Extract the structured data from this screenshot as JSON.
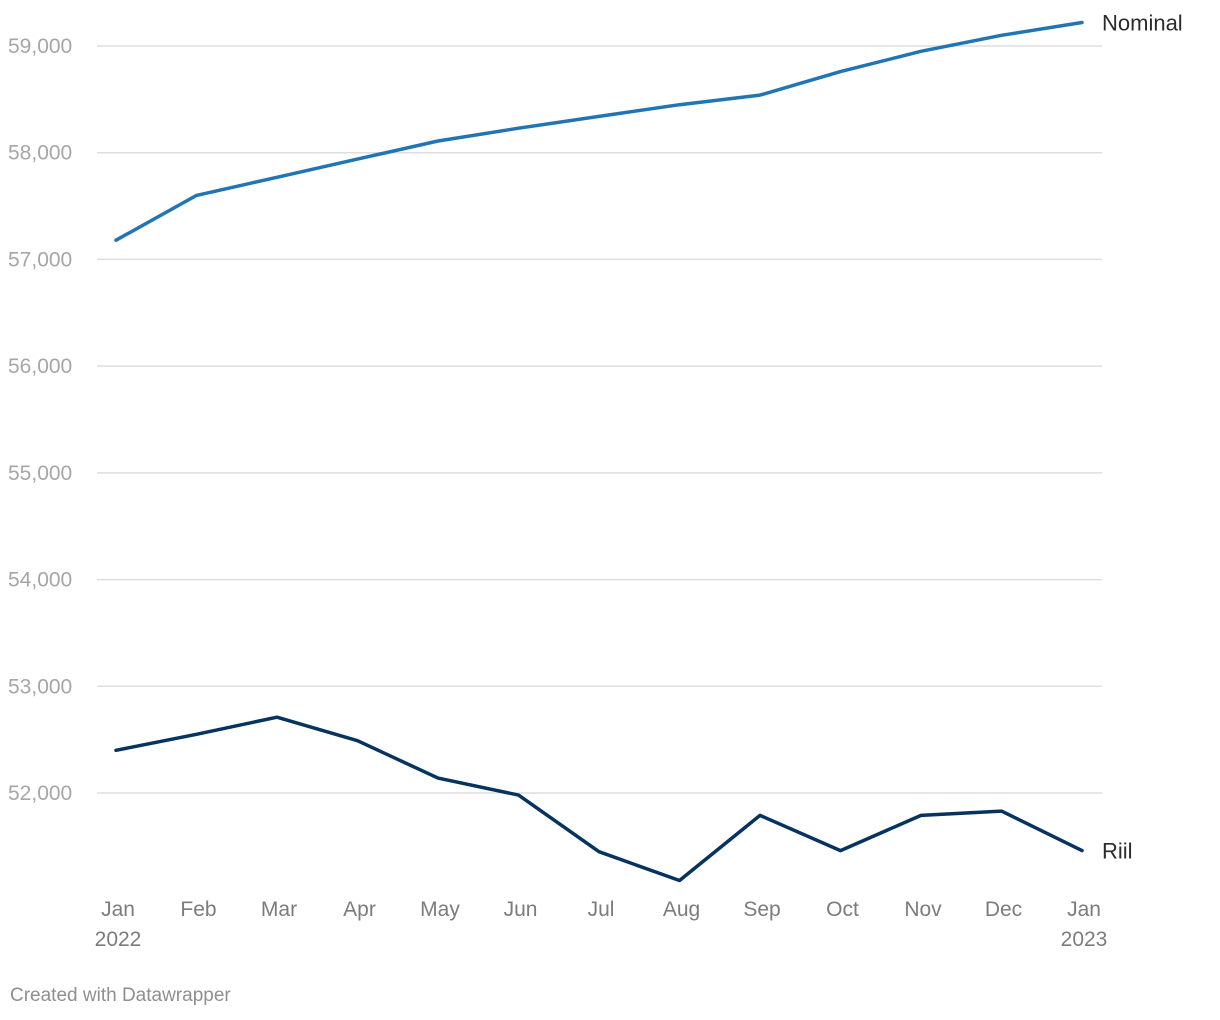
{
  "chart_data": {
    "type": "line",
    "x": [
      "Jan 2022",
      "Feb",
      "Mar",
      "Apr",
      "May",
      "Jun",
      "Jul",
      "Aug",
      "Sep",
      "Oct",
      "Nov",
      "Dec",
      "Jan 2023"
    ],
    "x_tick_labels": [
      {
        "line1": "Jan",
        "line2": "2022"
      },
      {
        "line1": "Feb",
        "line2": ""
      },
      {
        "line1": "Mar",
        "line2": ""
      },
      {
        "line1": "Apr",
        "line2": ""
      },
      {
        "line1": "May",
        "line2": ""
      },
      {
        "line1": "Jun",
        "line2": ""
      },
      {
        "line1": "Jul",
        "line2": ""
      },
      {
        "line1": "Aug",
        "line2": ""
      },
      {
        "line1": "Sep",
        "line2": ""
      },
      {
        "line1": "Oct",
        "line2": ""
      },
      {
        "line1": "Nov",
        "line2": ""
      },
      {
        "line1": "Dec",
        "line2": ""
      },
      {
        "line1": "Jan",
        "line2": "2023"
      }
    ],
    "y_ticks": [
      52000,
      53000,
      54000,
      55000,
      56000,
      57000,
      58000,
      59000
    ],
    "y_tick_labels": [
      "52,000",
      "53,000",
      "54,000",
      "55,000",
      "56,000",
      "57,000",
      "58,000",
      "59,000"
    ],
    "ylim": [
      51150,
      59220
    ],
    "grid": true,
    "legend": "direct labels at line ends",
    "series": [
      {
        "name": "Nominal",
        "color": "#2175b4",
        "values": [
          57180,
          57600,
          57770,
          57940,
          58110,
          58230,
          58340,
          58450,
          58540,
          58760,
          58950,
          59100,
          59220
        ]
      },
      {
        "name": "Riil",
        "color": "#06335f",
        "values": [
          52400,
          52550,
          52710,
          52490,
          52140,
          51980,
          51450,
          51180,
          51790,
          51460,
          51790,
          51830,
          51460
        ]
      }
    ]
  },
  "footer": {
    "credit": "Created with Datawrapper"
  }
}
